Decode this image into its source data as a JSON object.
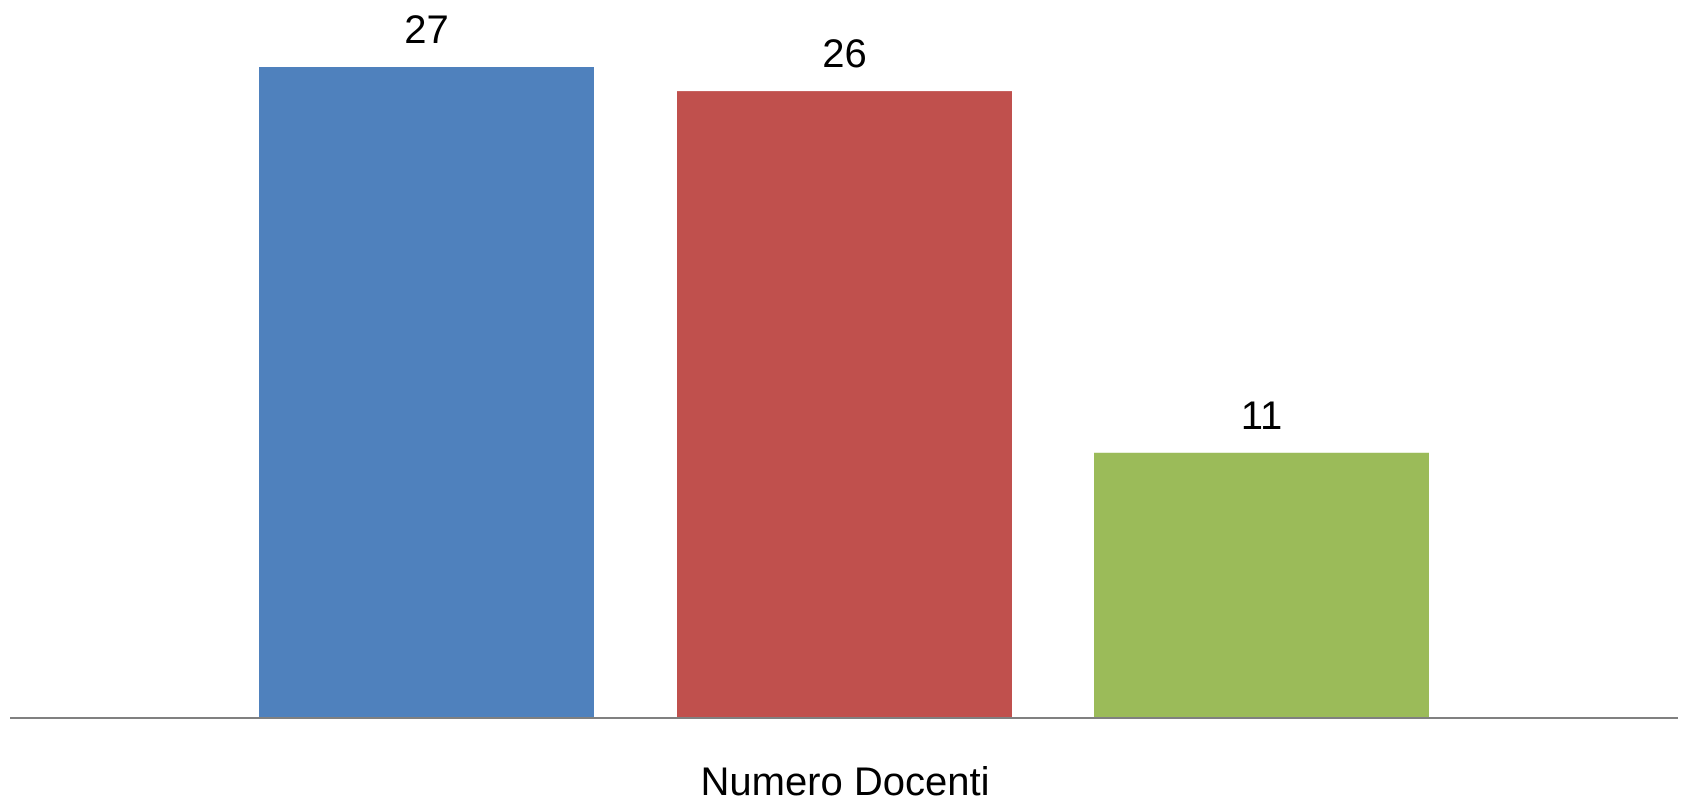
{
  "chart_data": {
    "type": "bar",
    "categories": [
      "Numero Docenti"
    ],
    "series": [
      {
        "values": [
          27
        ],
        "color": "#4F81BD"
      },
      {
        "values": [
          26
        ],
        "color": "#C0504D"
      },
      {
        "values": [
          11
        ],
        "color": "#9BBB59"
      }
    ],
    "data_labels": [
      "27",
      "26",
      "11"
    ],
    "ylim": [
      0,
      27
    ],
    "grid": false,
    "legend": "none",
    "axis_color": "#808080"
  }
}
